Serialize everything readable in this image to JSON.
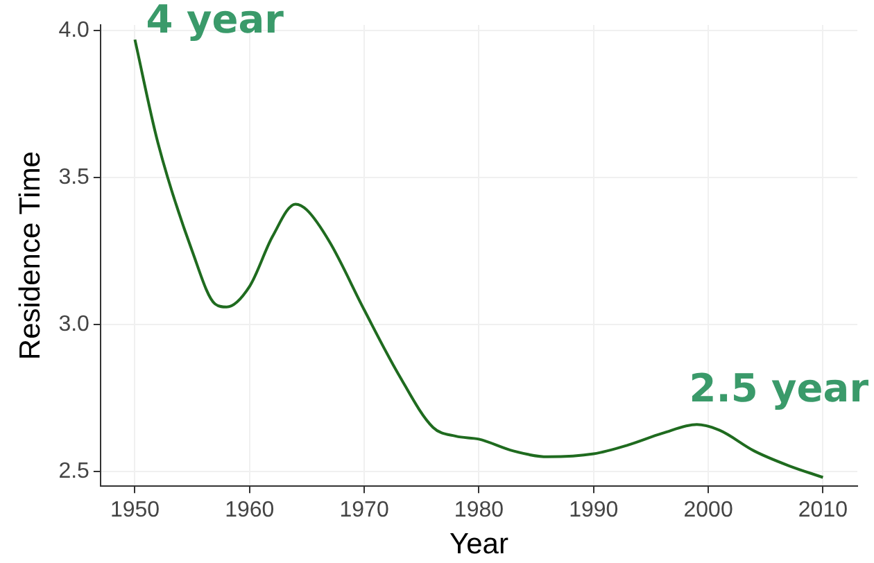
{
  "chart_data": {
    "type": "line",
    "xlabel": "Year",
    "ylabel": "Residence Time",
    "x": [
      1950,
      1952,
      1955,
      1957,
      1958,
      1960,
      1962,
      1964,
      1965,
      1967,
      1970,
      1973,
      1976,
      1978,
      1980,
      1983,
      1986,
      1990,
      1993,
      1996,
      1999,
      2001,
      2004,
      2007,
      2010
    ],
    "series": [
      {
        "color": "#1f6b1f",
        "values": [
          3.97,
          3.62,
          3.25,
          3.07,
          3.06,
          3.13,
          3.3,
          3.41,
          3.39,
          3.28,
          3.05,
          2.83,
          2.65,
          2.62,
          2.61,
          2.57,
          2.55,
          2.56,
          2.59,
          2.63,
          2.66,
          2.64,
          2.57,
          2.52,
          2.48
        ]
      }
    ],
    "xlim": [
      1947,
      2013
    ],
    "xticks": [
      1950,
      1960,
      1970,
      1980,
      1990,
      2000,
      2010
    ],
    "ylim": [
      2.45,
      4.02
    ],
    "yticks": [
      {
        "value": 2.5,
        "label": "2.5"
      },
      {
        "value": 3,
        "label": "3.0"
      },
      {
        "value": 3.5,
        "label": "3.5"
      },
      {
        "value": 4,
        "label": "4.0"
      }
    ],
    "grid": true,
    "marker": "none",
    "line_style": "solid",
    "annotations": [
      {
        "text": "4 year",
        "x": 1950,
        "y": 3.97
      },
      {
        "text": "2.5 year",
        "x": 1999,
        "y": 2.66
      }
    ]
  }
}
